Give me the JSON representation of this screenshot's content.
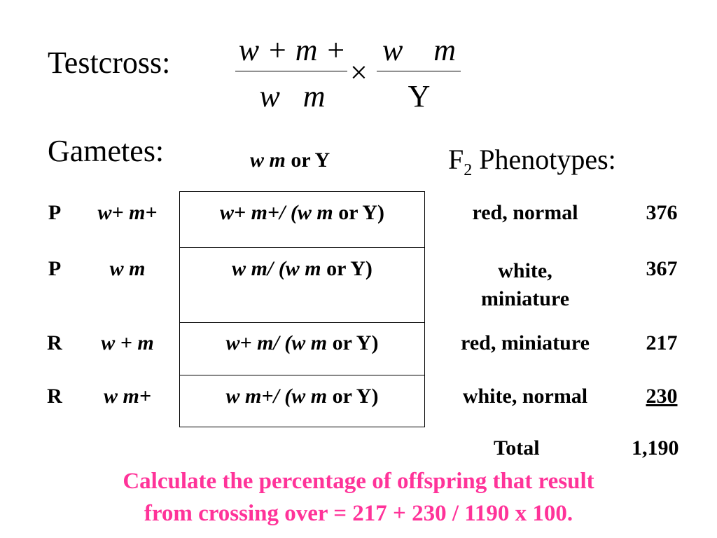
{
  "testcross": {
    "label": "Testcross:",
    "parent1_numerator": "w + m +",
    "parent1_denominator": "w   m",
    "times": "×",
    "parent2_numerator": "w    m",
    "parent2_denominator": "Y"
  },
  "gametes": {
    "label": "Gametes:",
    "female_gamete_genes": "w m",
    "female_gamete_or": "or Y"
  },
  "f2_label": {
    "base": "F",
    "sub": "2",
    "rest": " Phenotypes:"
  },
  "rows": [
    {
      "class": "P",
      "gamete": "w+ m+",
      "genotype_genes": "w+ m+/ (w m",
      "genotype_tail": " or Y)",
      "phenotype": "red, normal",
      "count": "376"
    },
    {
      "class": "P",
      "gamete": "w m",
      "genotype_genes": "w m/ (w m",
      "genotype_tail": " or Y)",
      "phenotype_line1": "white,",
      "phenotype_line2": "miniature",
      "count": "367"
    },
    {
      "class": "R",
      "gamete": "w + m",
      "genotype_genes": "w+ m/ (w m",
      "genotype_tail": " or Y)",
      "phenotype": "red, miniature",
      "count": "217"
    },
    {
      "class": "R",
      "gamete": "w m+",
      "genotype_genes": "w m+/ (w m",
      "genotype_tail": " or Y)",
      "phenotype": "white, normal",
      "count": "230"
    }
  ],
  "total": {
    "label": "Total",
    "value": "1,190"
  },
  "conclusion": {
    "line1": "Calculate the percentage of offspring that result",
    "line2": "from crossing over = 217 + 230 / 1190 x 100.",
    "color": "#ff3399"
  }
}
